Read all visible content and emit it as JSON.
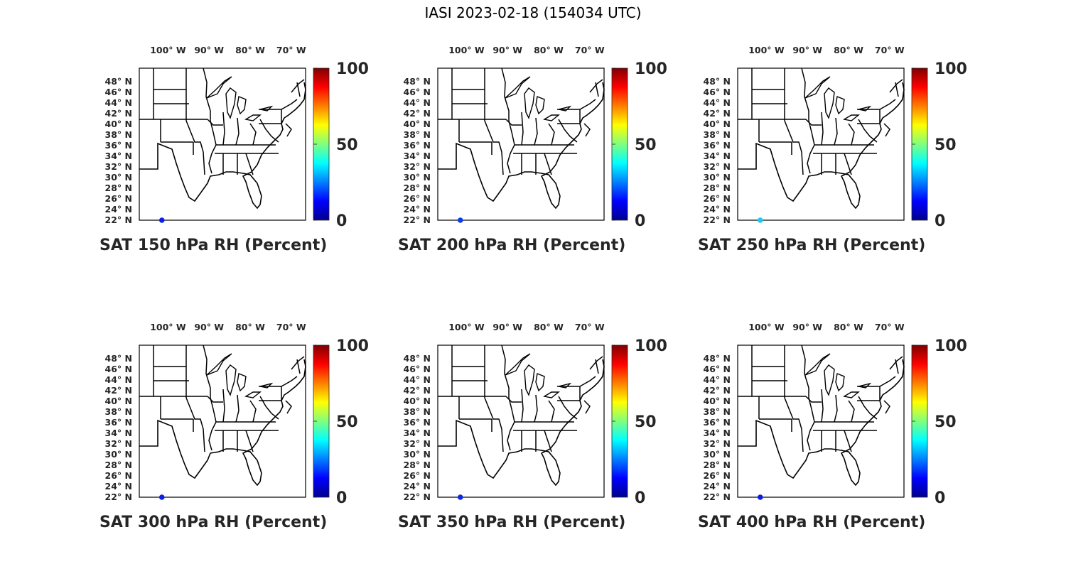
{
  "title": "IASI 2023-02-18 (154034 UTC)",
  "longitude_ticks": [
    "100° W",
    "90° W",
    "80° W",
    "70° W"
  ],
  "latitude_ticks": [
    "48° N",
    "46° N",
    "44° N",
    "42° N",
    "40° N",
    "38° N",
    "36° N",
    "34° N",
    "32° N",
    "30° N",
    "28° N",
    "26° N",
    "24° N",
    "22° N"
  ],
  "colorbar": {
    "ticks": [
      "0",
      "50",
      "100"
    ],
    "min": 0,
    "max": 100,
    "colormap": "jet"
  },
  "panels": [
    {
      "caption": "SAT 150 hPa RH (Percent)",
      "point": {
        "lon": -101.5,
        "lat": 22.0,
        "rh": 8,
        "color": "#0a1ee6"
      }
    },
    {
      "caption": "SAT 200 hPa RH (Percent)",
      "point": {
        "lon": -101.5,
        "lat": 22.0,
        "rh": 12,
        "color": "#0a3cf0"
      }
    },
    {
      "caption": "SAT 250 hPa RH (Percent)",
      "point": {
        "lon": -101.5,
        "lat": 22.0,
        "rh": 38,
        "color": "#1ec8f0"
      }
    },
    {
      "caption": "SAT 300 hPa RH (Percent)",
      "point": {
        "lon": -101.5,
        "lat": 22.0,
        "rh": 8,
        "color": "#0a1ee6"
      }
    },
    {
      "caption": "SAT 350 hPa RH (Percent)",
      "point": {
        "lon": -101.5,
        "lat": 22.0,
        "rh": 10,
        "color": "#0a28e6"
      }
    },
    {
      "caption": "SAT 400 hPa RH (Percent)",
      "point": {
        "lon": -101.5,
        "lat": 22.0,
        "rh": 8,
        "color": "#0a1ee6"
      }
    }
  ]
}
